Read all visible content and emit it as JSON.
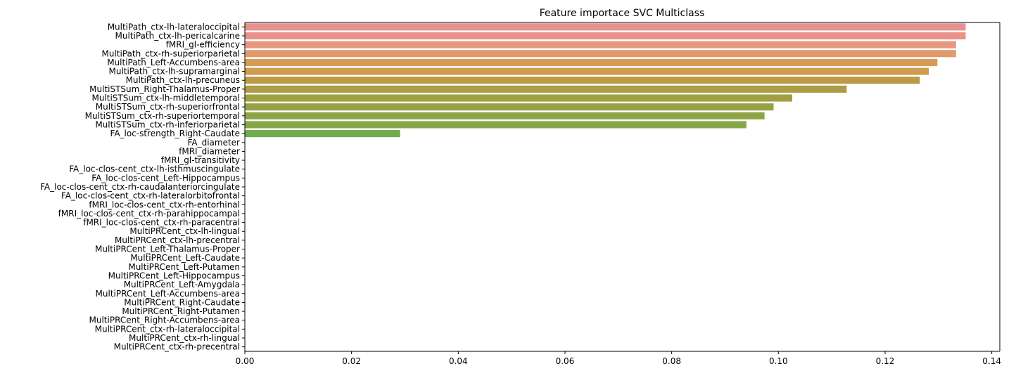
{
  "chart_data": {
    "type": "bar",
    "orientation": "horizontal",
    "title": "Feature importace SVC Multiclass",
    "xlabel": "",
    "ylabel": "",
    "xlim": [
      0,
      0.1415
    ],
    "xticks": [
      0.0,
      0.02,
      0.04,
      0.06,
      0.08,
      0.1,
      0.12,
      0.14
    ],
    "xtick_labels": [
      "0.00",
      "0.02",
      "0.04",
      "0.06",
      "0.08",
      "0.10",
      "0.12",
      "0.14"
    ],
    "grid": false,
    "categories": [
      "MultiPath_ctx-lh-lateraloccipital",
      "MultiPath_ctx-lh-pericalcarine",
      "fMRI_gl-efficiency",
      "MultiPath_ctx-rh-superiorparietal",
      "MultiPath_Left-Accumbens-area",
      "MultiPath_ctx-lh-supramarginal",
      "MultiPath_ctx-lh-precuneus",
      "MultiSTSum_Right-Thalamus-Proper",
      "MultiSTSum_ctx-lh-middletemporal",
      "MultiSTSum_ctx-rh-superiorfrontal",
      "MultiSTSum_ctx-rh-superiortemporal",
      "MultiSTSum_ctx-rh-inferiorparietal",
      "FA_loc-strength_Right-Caudate",
      "FA_diameter",
      "fMRI_diameter",
      "fMRI_gl-transitivity",
      "FA_loc-clos-cent_ctx-lh-isthmuscingulate",
      "FA_loc-clos-cent_Left-Hippocampus",
      "FA_loc-clos-cent_ctx-rh-caudalanteriorcingulate",
      "FA_loc-clos-cent_ctx-rh-lateralorbitofrontal",
      "fMRI_loc-clos-cent_ctx-rh-entorhinal",
      "fMRI_loc-clos-cent_ctx-rh-parahippocampal",
      "fMRI_loc-clos-cent_ctx-rh-paracentral",
      "MultiPRCent_ctx-lh-lingual",
      "MultiPRCent_ctx-lh-precentral",
      "MultiPRCent_Left-Thalamus-Proper",
      "MultiPRCent_Left-Caudate",
      "MultiPRCent_Left-Putamen",
      "MultiPRCent_Left-Hippocampus",
      "MultiPRCent_Left-Amygdala",
      "MultiPRCent_Left-Accumbens-area",
      "MultiPRCent_Right-Caudate",
      "MultiPRCent_Right-Putamen",
      "MultiPRCent_Right-Accumbens-area",
      "MultiPRCent_ctx-rh-lateraloccipital",
      "MultiPRCent_ctx-rh-lingual",
      "MultiPRCent_ctx-rh-precentral"
    ],
    "values": [
      0.1351,
      0.1351,
      0.1333,
      0.1333,
      0.1298,
      0.1282,
      0.1265,
      0.1128,
      0.1026,
      0.0991,
      0.0974,
      0.094,
      0.0291,
      0,
      0,
      0,
      0,
      0,
      0,
      0,
      0,
      0,
      0,
      0,
      0,
      0,
      0,
      0,
      0,
      0,
      0,
      0,
      0,
      0,
      0,
      0,
      0
    ],
    "colors": [
      "#e8908f",
      "#e8928a",
      "#e59880",
      "#e09a6c",
      "#d79b56",
      "#cf9c4f",
      "#bb9a47",
      "#ac9c45",
      "#a09f44",
      "#97a145",
      "#8ea546",
      "#86a747",
      "#6fac4c",
      "#5bae5a",
      "#55ae6b",
      "#51ae7d",
      "#4fae8d",
      "#50ad9b",
      "#52aca9",
      "#55abb5",
      "#58aac0",
      "#5ca8cb",
      "#63a5d8",
      "#6ea1e4",
      "#7c9cec",
      "#8c96f0",
      "#9c8ff0",
      "#ab88ee",
      "#b884ea",
      "#c37fe5",
      "#cd7bdf",
      "#d67ad7",
      "#df7bcc",
      "#e47ec0",
      "#e882b3",
      "#ea86a6",
      "#eb8a9a"
    ]
  }
}
